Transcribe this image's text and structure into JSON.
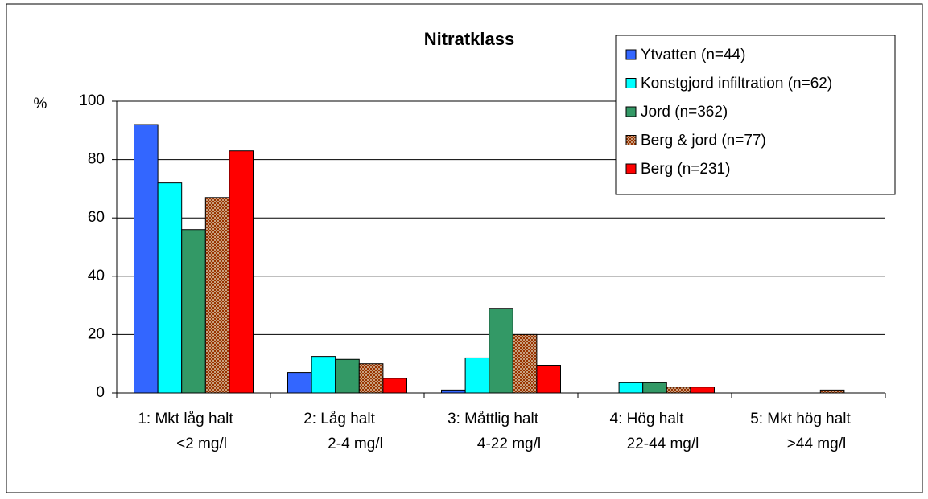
{
  "chart_data": {
    "type": "bar",
    "title": "Nitratklass",
    "y_label": "%",
    "categories": [
      [
        "1: Mkt låg halt",
        "<2 mg/l"
      ],
      [
        "2: Låg halt",
        "2-4 mg/l"
      ],
      [
        "3: Måttlig halt",
        "4-22 mg/l"
      ],
      [
        "4: Hög halt",
        "22-44 mg/l"
      ],
      [
        "5: Mkt hög halt",
        ">44 mg/l"
      ]
    ],
    "series": [
      {
        "name": "Ytvatten (n=44)",
        "color": "#3366ff",
        "values": [
          92,
          7,
          1,
          0,
          0
        ]
      },
      {
        "name": "Konstgjord infiltration (n=62)",
        "color": "#00ffff",
        "values": [
          72,
          12.5,
          12,
          3.5,
          0
        ]
      },
      {
        "name": "Jord (n=362)",
        "color": "#339966",
        "values": [
          56,
          11.5,
          29,
          3.5,
          0
        ]
      },
      {
        "name": "Berg & jord (n=77)",
        "color": "#993300",
        "hatch": true,
        "values": [
          67,
          10,
          20,
          2,
          1
        ]
      },
      {
        "name": "Berg (n=231)",
        "color": "#ff0000",
        "values": [
          83,
          5,
          9.5,
          2,
          0
        ]
      }
    ],
    "ylim": [
      0,
      100
    ],
    "yticks": [
      0,
      20,
      40,
      60,
      80,
      100
    ],
    "grid": true,
    "legend": "top-right"
  }
}
